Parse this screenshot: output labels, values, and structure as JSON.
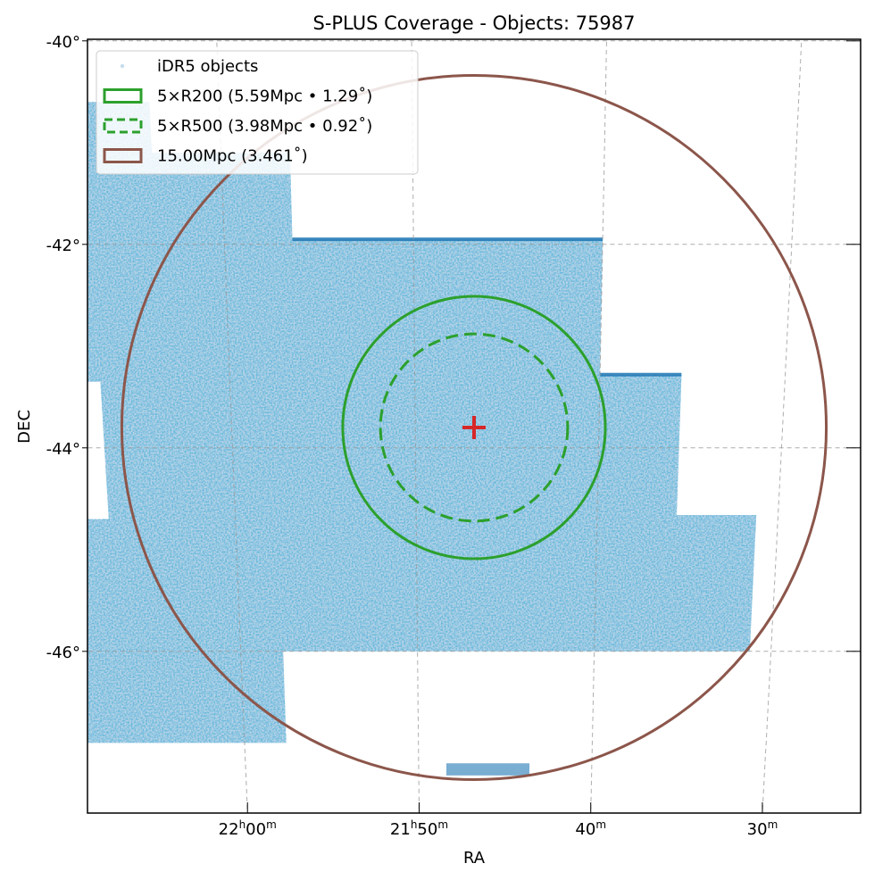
{
  "chart_data": {
    "type": "scatter",
    "projection": "sky (RA/DEC) with curved coordinate grid",
    "title": "S-PLUS Coverage - Objects: 75987",
    "xlabel": "RA",
    "ylabel": "DEC",
    "x_ticks": [
      {
        "value": 330.0,
        "h": "22",
        "m": "00"
      },
      {
        "value": 327.5,
        "h": "21",
        "m": "50"
      },
      {
        "value": 325.0,
        "h": "",
        "m": "40"
      },
      {
        "value": 322.5,
        "h": "",
        "m": "30"
      }
    ],
    "y_ticks": [
      {
        "value": -40,
        "label": "-40°"
      },
      {
        "value": -42,
        "label": "-42°"
      },
      {
        "value": -44,
        "label": "-44°"
      },
      {
        "value": -46,
        "label": "-46°"
      }
    ],
    "xlim": [
      332.4,
      321.0
    ],
    "ylim": [
      -47.6,
      -39.98
    ],
    "grid": true,
    "center": {
      "ra": 326.7,
      "dec": -43.8,
      "marker": "+",
      "color": "#d62728"
    },
    "legend": {
      "position": "top-left",
      "entries": [
        {
          "label": "iDR5 objects",
          "kind": "points",
          "color": "#1f77b4"
        },
        {
          "label": "5×R200 (5.59Mpc • 1.29˚)",
          "kind": "circle",
          "style": "solid",
          "color": "#2ca02c",
          "radius_deg": 1.29
        },
        {
          "label": "5×R500 (3.98Mpc • 0.92˚)",
          "kind": "circle",
          "style": "dashed",
          "color": "#2ca02c",
          "radius_deg": 0.92
        },
        {
          "label": "15.00Mpc (3.461˚)",
          "kind": "circle",
          "style": "solid",
          "color": "#8c564b",
          "radius_deg": 3.461
        }
      ]
    },
    "object_count": 75987,
    "coverage_color": "#1f77b4",
    "coverage_polygon": [
      [
        332.4,
        -40.6
      ],
      [
        330.9,
        -40.6
      ],
      [
        330.9,
        -41.1
      ],
      [
        329.1,
        -41.1
      ],
      [
        329.1,
        -41.95
      ],
      [
        325.0,
        -41.95
      ],
      [
        325.0,
        -43.28
      ],
      [
        323.9,
        -43.28
      ],
      [
        323.9,
        -44.66
      ],
      [
        322.8,
        -44.66
      ],
      [
        322.8,
        -46.0
      ],
      [
        329.4,
        -46.0
      ],
      [
        329.4,
        -46.9
      ],
      [
        332.4,
        -46.9
      ]
    ],
    "coverage_holes": [
      [
        [
          332.4,
          -43.35
        ],
        [
          331.75,
          -43.35
        ],
        [
          331.75,
          -44.7
        ],
        [
          332.4,
          -44.7
        ]
      ]
    ],
    "coverage_strips": [
      [
        [
          327.1,
          -47.1
        ],
        [
          325.9,
          -47.1
        ],
        [
          325.9,
          -47.22
        ],
        [
          327.1,
          -47.22
        ]
      ]
    ]
  }
}
